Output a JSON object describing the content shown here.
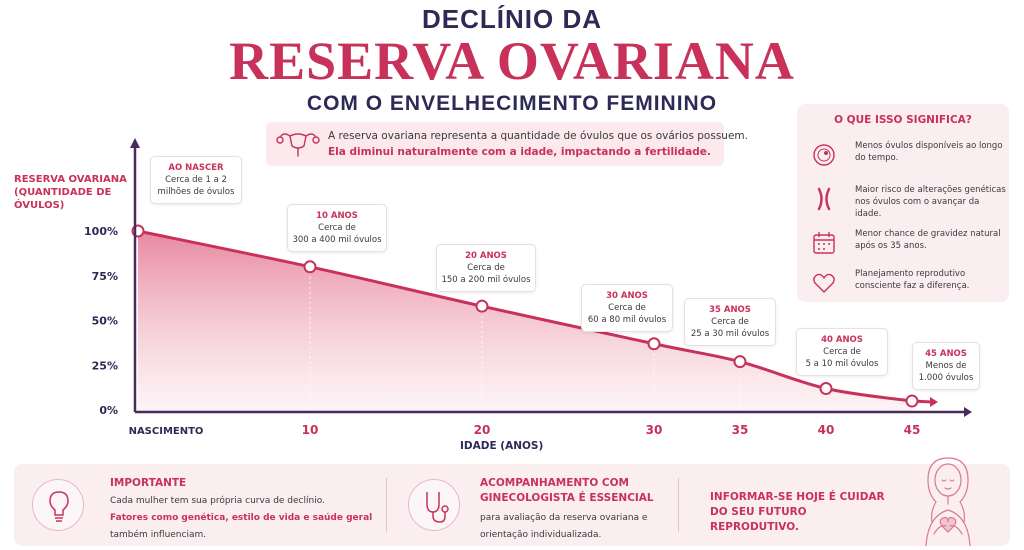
{
  "header": {
    "line1": "DECLÍNIO DA",
    "line2": "RESERVA OVARIANA",
    "line3": "COM O ENVELHECIMENTO FEMININO"
  },
  "intro": {
    "icon": "uterus-icon",
    "text1": "A reserva ovariana representa a quantidade de óvulos que os ovários possuem.",
    "text2": "Ela diminui naturalmente com a idade, impactando a fertilidade."
  },
  "chart_data": {
    "type": "area",
    "ylabel": "RESERVA OVARIANA (QUANTIDADE DE ÓVULOS)",
    "xlabel": "IDADE (ANOS)",
    "x": [
      0,
      10,
      20,
      30,
      35,
      40,
      45
    ],
    "x_tick_labels": [
      "NASCIMENTO",
      "10",
      "20",
      "30",
      "35",
      "40",
      "45"
    ],
    "values": [
      100,
      80,
      58,
      37,
      27,
      12,
      5
    ],
    "y_ticks": [
      0,
      25,
      50,
      75,
      100
    ],
    "y_tick_labels": [
      "0%",
      "25%",
      "50%",
      "75%",
      "100%"
    ],
    "ylim": [
      0,
      100
    ],
    "grid": false,
    "annotations": [
      {
        "head": "AO NASCER",
        "lines": [
          "Cerca de 1 a 2",
          "milhões de óvulos"
        ]
      },
      {
        "head": "10 ANOS",
        "lines": [
          "Cerca de",
          "300 a 400 mil óvulos"
        ]
      },
      {
        "head": "20 ANOS",
        "lines": [
          "Cerca de",
          "150 a 200 mil óvulos"
        ]
      },
      {
        "head": "30 ANOS",
        "lines": [
          "Cerca de",
          "60 a 80 mil óvulos"
        ]
      },
      {
        "head": "35 ANOS",
        "lines": [
          "Cerca de",
          "25 a 30 mil óvulos"
        ]
      },
      {
        "head": "40 ANOS",
        "lines": [
          "Cerca de",
          "5 a 10 mil óvulos"
        ]
      },
      {
        "head": "45 ANOS",
        "lines": [
          "Menos de",
          "1.000 óvulos"
        ]
      }
    ],
    "colors": {
      "line": "#c8325a",
      "fill": "#e0607f",
      "axis": "#4a2a5a"
    }
  },
  "sidebar": {
    "title": "O QUE ISSO SIGNIFICA?",
    "items": [
      {
        "icon": "egg-cell-icon",
        "text": "Menos óvulos disponíveis ao longo do tempo."
      },
      {
        "icon": "chromosome-icon",
        "text": "Maior risco de alterações genéticas nos óvulos com o avançar da idade."
      },
      {
        "icon": "calendar-icon",
        "text": "Menor chance de gravidez natural após os 35 anos."
      },
      {
        "icon": "heart-icon",
        "text": "Planejamento reprodutivo consciente faz a diferença."
      }
    ]
  },
  "bottom": {
    "important": {
      "icon": "lightbulb-icon",
      "title": "IMPORTANTE",
      "line1": "Cada mulher tem sua própria curva de declínio.",
      "highlight": "Fatores como genética, estilo de vida e saúde geral",
      "line3": "também influenciam."
    },
    "followup": {
      "icon": "stethoscope-icon",
      "title": "ACOMPANHAMENTO COM GINECOLOGISTA É ESSENCIAL",
      "text": "para avaliação da reserva ovariana e orientação individualizada."
    },
    "message": "INFORMAR-SE HOJE É CUIDAR DO SEU FUTURO REPRODUTIVO.",
    "illustration": "woman-heart-illustration"
  },
  "colors": {
    "accent": "#c8325a",
    "navy": "#2d2a55",
    "soft_pink": "#fbeef1"
  }
}
